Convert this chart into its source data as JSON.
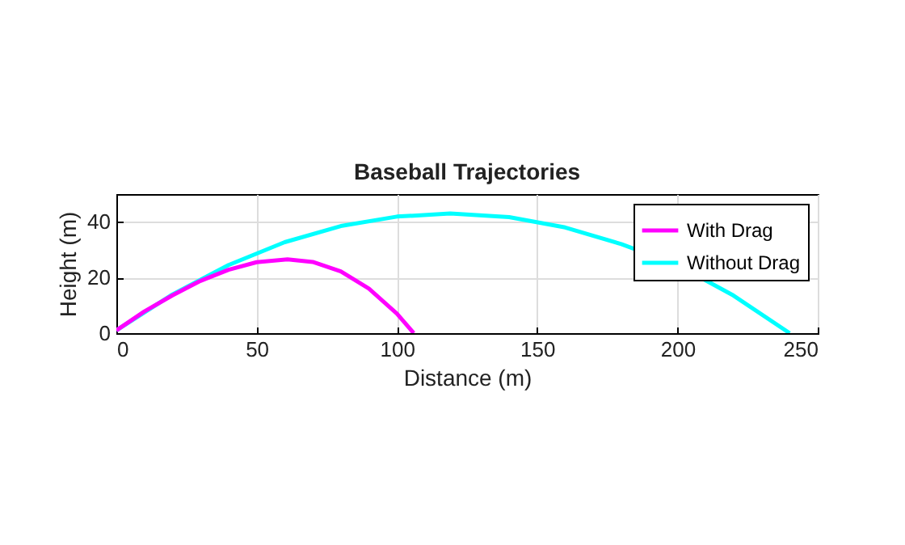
{
  "chart_data": {
    "type": "line",
    "title": "Baseball  Trajectories",
    "xlabel": "Distance (m)",
    "ylabel": "Height (m)",
    "xlim": [
      0,
      250
    ],
    "xticks": [
      0,
      50,
      100,
      150,
      200,
      250
    ],
    "ylim": [
      0,
      50
    ],
    "yticks": [
      0,
      20,
      40
    ],
    "grid": true,
    "legend": "top right",
    "line_style": "solid",
    "series": [
      {
        "name": "With Drag",
        "color": "#ff00ff",
        "x": [
          0,
          10,
          20,
          30,
          40,
          50,
          61,
          70,
          80,
          90,
          100,
          106
        ],
        "values": [
          1,
          7.8,
          13.6,
          18.8,
          22.8,
          25.5,
          26.5,
          25.6,
          22.2,
          16,
          7,
          0
        ]
      },
      {
        "name": "Without Drag",
        "color": "#00ffff",
        "x": [
          0,
          20,
          40,
          60,
          80,
          100,
          119,
          140,
          160,
          180,
          200,
          220,
          240
        ],
        "values": [
          1,
          13.9,
          24.5,
          32.7,
          38.5,
          41.9,
          43,
          41.7,
          38,
          32,
          24.5,
          13.5,
          0
        ]
      }
    ]
  }
}
